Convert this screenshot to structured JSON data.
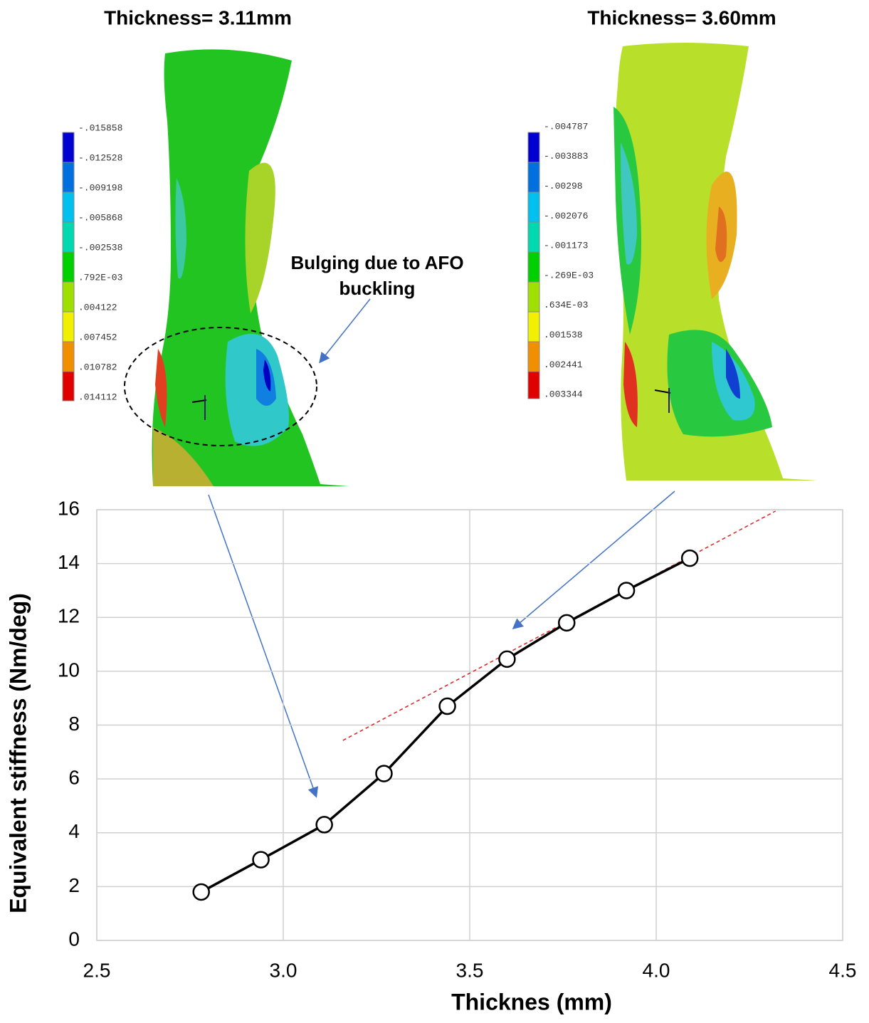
{
  "chart_data": {
    "type": "line",
    "x_label": "Thicknes (mm)",
    "y_label": "Equivalent stiffness (Nm/deg)",
    "x": [
      2.78,
      2.94,
      3.11,
      3.27,
      3.44,
      3.6,
      3.76,
      3.92,
      4.09
    ],
    "series": [
      {
        "color": "#000000",
        "values": [
          1.8,
          3.0,
          4.3,
          6.2,
          8.7,
          10.45,
          11.8,
          13.0,
          14.2
        ]
      }
    ],
    "trendline": {
      "x": [
        3.16,
        4.32
      ],
      "y": [
        7.43,
        15.95
      ],
      "color": "#e02020"
    },
    "xlim": [
      2.5,
      4.5
    ],
    "xticks": [
      2.5,
      {
        "value": 3,
        "label": "3.0"
      },
      3.5,
      {
        "value": 4,
        "label": "4.0"
      },
      4.5
    ],
    "ylim": [
      0,
      16
    ],
    "yticks": [
      0,
      2,
      4,
      6,
      8,
      10,
      12,
      14,
      16
    ],
    "grid": true
  },
  "figures": [
    {
      "title": "Thickness= 3.11mm",
      "colorbar_labels": [
        "-.015858",
        "-.012528",
        "-.009198",
        "-.005868",
        "-.002538",
        ".792E-03",
        ".004122",
        ".007452",
        ".010782",
        ".014112"
      ]
    },
    {
      "title": "Thickness= 3.60mm",
      "colorbar_labels": [
        "-.004787",
        "-.003883",
        "-.00298",
        "-.002076",
        "-.001173",
        "-.269E-03",
        ".634E-03",
        ".001538",
        ".002441",
        ".003344"
      ]
    }
  ],
  "annotation": [
    "Bulging due to AFO",
    "buckling"
  ]
}
